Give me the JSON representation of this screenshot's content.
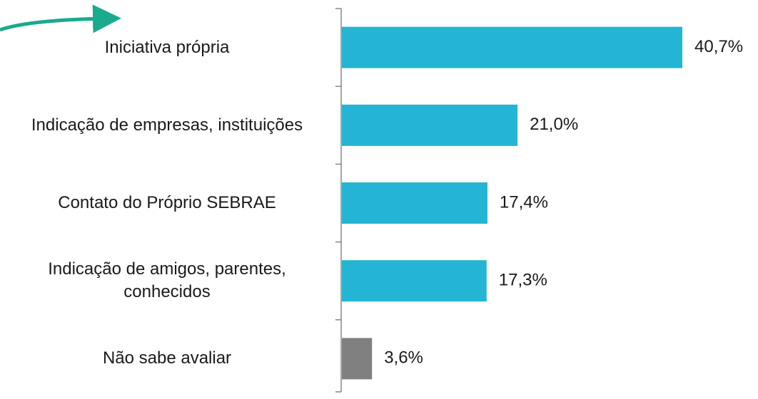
{
  "chart_data": {
    "type": "barh",
    "categories": [
      "Iniciativa própria",
      "Indicação de empresas, instituições",
      "Contato do Próprio SEBRAE",
      "Indicação de amigos, parentes, conhecidos",
      "Não sabe avaliar"
    ],
    "values": [
      40.7,
      21.0,
      17.4,
      17.3,
      3.6
    ],
    "value_labels": [
      "40,7%",
      "21,0%",
      "17,4%",
      "17,3%",
      "3,6%"
    ],
    "colors": [
      "#23b5d3",
      "#23b5d3",
      "#23b5d3",
      "#23b5d3",
      "#808080"
    ]
  }
}
